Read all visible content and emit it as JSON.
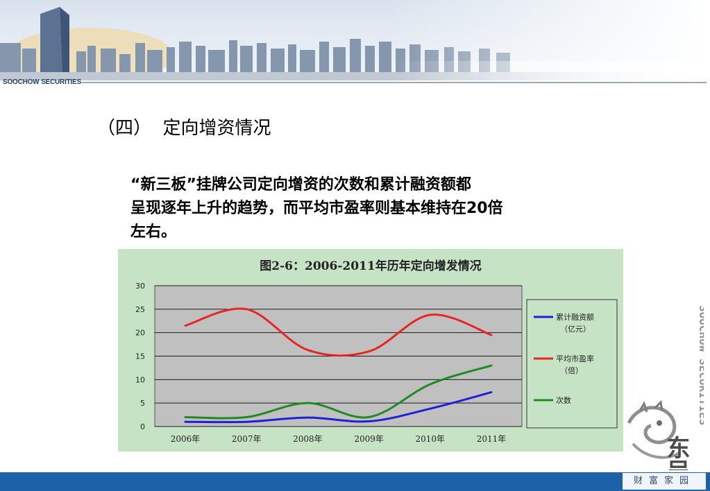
{
  "header": {
    "brand": "SOOCHOW SECURITIES"
  },
  "slide": {
    "section_title": "（四）  定向增资情况",
    "paragraph_lines": [
      "“新三板”挂牌公司定向增资的次数和累计融资额都",
      "呈现逐年上升的趋势，而平均市盈率则基本维持在20倍",
      "左右。"
    ]
  },
  "chart_data": {
    "type": "line",
    "title": "图2-6：2006-2011年历年定向增发情况",
    "categories": [
      "2006年",
      "2007年",
      "2008年",
      "2009年",
      "2010年",
      "2011年"
    ],
    "ylim": [
      0,
      30
    ],
    "yticks": [
      0,
      5,
      10,
      15,
      20,
      25,
      30
    ],
    "grid": true,
    "legend_position": "right",
    "series": [
      {
        "name": "累计融资额（亿元）",
        "color": "#1f1fd6",
        "values": [
          1.0,
          1.0,
          1.9,
          1.1,
          3.8,
          7.3
        ]
      },
      {
        "name": "平均市盈率（倍）",
        "color": "#e8251f",
        "values": [
          21.5,
          25.0,
          16.3,
          16.0,
          23.8,
          19.5
        ]
      },
      {
        "name": "次数",
        "color": "#1f8a1f",
        "values": [
          2.0,
          2.0,
          5.0,
          2.0,
          9.0,
          13.0
        ]
      }
    ],
    "legend_lines": [
      [
        "累计融资额",
        "（亿元）"
      ],
      [
        "平均市盈率",
        "（倍）"
      ],
      [
        "次数"
      ]
    ]
  },
  "decor": {
    "vertical_brand": "SOOCHOW SECURITIES",
    "seal_text": "东吴",
    "footer_tag": "财富家园"
  }
}
